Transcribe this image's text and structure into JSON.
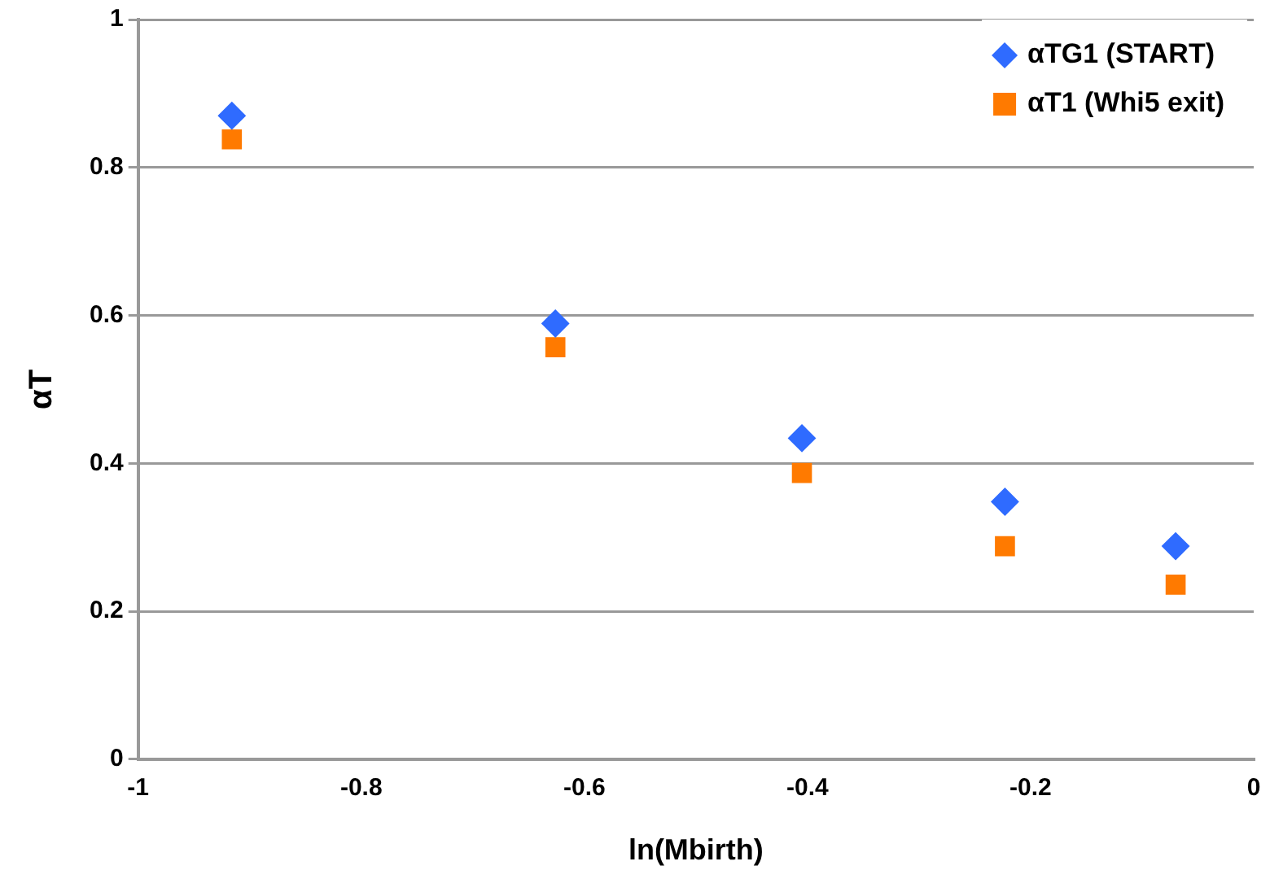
{
  "chart_data": {
    "type": "scatter",
    "xlabel": "ln(Mbirth)",
    "ylabel": "αT",
    "x": [
      -0.916,
      -0.626,
      -0.405,
      -0.223,
      -0.07
    ],
    "series": [
      {
        "name": "αTG1 (START)",
        "color": "#2f6bff",
        "marker": "diamond",
        "values": [
          0.87,
          0.589,
          0.434,
          0.348,
          0.288
        ]
      },
      {
        "name": "αT1 (Whi5 exit)",
        "color": "#ff7a00",
        "marker": "square",
        "values": [
          0.838,
          0.557,
          0.387,
          0.288,
          0.236
        ]
      }
    ],
    "xlim": [
      -1,
      0
    ],
    "xticks": [
      -1,
      -0.8,
      -0.6,
      -0.4,
      -0.2,
      0
    ],
    "ylim": [
      0,
      1
    ],
    "yticks": [
      0,
      0.2,
      0.4,
      0.6,
      0.8,
      1
    ],
    "grid": "y",
    "legend": "top right"
  }
}
